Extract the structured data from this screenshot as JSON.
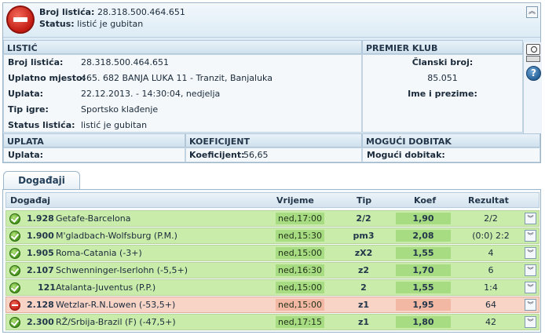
{
  "header": {
    "ticket_label": "Broj listića:",
    "ticket_value": "28.318.500.464.651",
    "status_label": "Status:",
    "status_value": "listić je gubitan"
  },
  "listic": {
    "title": "LISTIĆ",
    "rows": [
      {
        "label": "Broj listića:",
        "value": "28.318.500.464.651"
      },
      {
        "label": "Uplatno mjesto:",
        "value": "465. 682 BANJA LUKA 11 - Tranzit, Banjaluka"
      },
      {
        "label": "Uplata:",
        "value": "22.12.2013. - 14:30:04, nedjelja"
      },
      {
        "label": "Tip igre:",
        "value": "Sportsko klađenje"
      },
      {
        "label": "Status listića:",
        "value": "listić je gubitan"
      }
    ]
  },
  "premier": {
    "title": "PREMIER KLUB",
    "member_label": "Članski broj:",
    "member_value": "85.051",
    "name_label": "Ime i prezime:"
  },
  "uplata": {
    "title": "UPLATA",
    "label": "Uplata:"
  },
  "koeficijent": {
    "title": "KOEFICIJENT",
    "label": "Koeficijent:",
    "value": "56,65"
  },
  "dobitak": {
    "title": "MOGUĆI DOBITAK",
    "label": "Mogući dobitak:"
  },
  "icons": {
    "collapse": "chevron-up-icon",
    "camera": "camera-icon",
    "help": "help-icon",
    "help_glyph": "?"
  },
  "tab": {
    "label": "Događaji"
  },
  "events": {
    "headers": {
      "event": "Događaj",
      "time": "Vrijeme",
      "tip": "Tip",
      "koef": "Koef",
      "result": "Rezultat"
    },
    "rows": [
      {
        "code": "1.928",
        "match": "Getafe-Barcelona",
        "time": "ned,17:00",
        "tip": "2/2",
        "koef": "1,90",
        "result": "2/2",
        "status": "won"
      },
      {
        "code": "1.900",
        "match": "M'gladbach-Wolfsburg (P.M.)",
        "time": "ned,15:30",
        "tip": "pm3",
        "koef": "2,08",
        "result": "(0:0) 2:2",
        "status": "won"
      },
      {
        "code": "1.905",
        "match": "Roma-Catania (-3+)",
        "time": "ned,15:00",
        "tip": "zX2",
        "koef": "1,55",
        "result": "4",
        "status": "won"
      },
      {
        "code": "2.107",
        "match": "Schwenninger-Iserlohn (-5,5+)",
        "time": "ned,16:30",
        "tip": "z2",
        "koef": "1,70",
        "result": "6",
        "status": "won"
      },
      {
        "code": "121",
        "match": "Atalanta-Juventus (P.P.)",
        "time": "ned,15:00",
        "tip": "2",
        "koef": "1,55",
        "result": "1:4",
        "status": "won"
      },
      {
        "code": "2.128",
        "match": "Wetzlar-R.N.Lowen (-53,5+)",
        "time": "ned,15:00",
        "tip": "z1",
        "koef": "1,95",
        "result": "64",
        "status": "lost"
      },
      {
        "code": "2.300",
        "match": "RŽ/Srbija-Brazil (F) (-47,5+)",
        "time": "ned,17:15",
        "tip": "z1",
        "koef": "1,80",
        "result": "42",
        "status": "won"
      }
    ]
  }
}
